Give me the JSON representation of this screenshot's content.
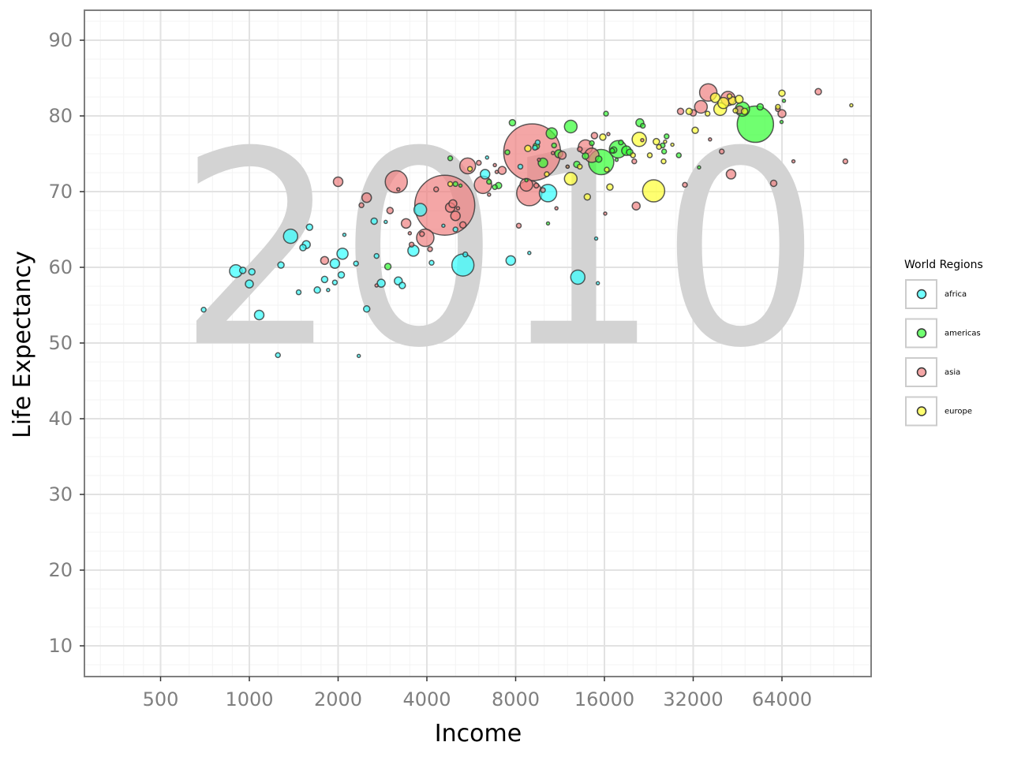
{
  "chart_data": {
    "type": "scatter",
    "year": "2010",
    "xlabel": "Income",
    "ylabel": "Life Expectancy",
    "x_scale": "log2",
    "xlim": [
      300,
      120000
    ],
    "ylim": [
      6,
      94
    ],
    "x_ticks": [
      500,
      1000,
      2000,
      4000,
      8000,
      16000,
      32000,
      64000
    ],
    "x_tick_labels": [
      "500",
      "1000",
      "2000",
      "4000",
      "8000",
      "16000",
      "32000",
      "64000"
    ],
    "y_ticks": [
      10,
      20,
      30,
      40,
      50,
      60,
      70,
      80,
      90
    ],
    "y_tick_labels": [
      "10",
      "20",
      "30",
      "40",
      "50",
      "60",
      "70",
      "80",
      "90"
    ],
    "grid": true,
    "legend_title": "World Regions",
    "legend_position": "right",
    "point_size_meaning": "population",
    "series": [
      {
        "name": "africa",
        "color": "#33ffff",
        "points": [
          [
            700,
            54.4,
            3
          ],
          [
            900,
            59.5,
            8
          ],
          [
            950,
            59.6,
            4
          ],
          [
            1000,
            57.8,
            5
          ],
          [
            1020,
            59.4,
            4
          ],
          [
            1080,
            53.7,
            6
          ],
          [
            1250,
            48.4,
            3
          ],
          [
            1280,
            60.3,
            4
          ],
          [
            1380,
            64.1,
            9
          ],
          [
            1470,
            56.7,
            3
          ],
          [
            1520,
            62.6,
            4
          ],
          [
            1560,
            63,
            5
          ],
          [
            1600,
            65.3,
            4
          ],
          [
            1700,
            57,
            4
          ],
          [
            1800,
            58.4,
            4
          ],
          [
            1850,
            57,
            2
          ],
          [
            1950,
            58,
            3
          ],
          [
            1950,
            60.5,
            6
          ],
          [
            2070,
            61.8,
            7
          ],
          [
            2050,
            59,
            4
          ],
          [
            2100,
            64.3,
            2
          ],
          [
            2300,
            60.5,
            3
          ],
          [
            2350,
            48.3,
            2
          ],
          [
            2500,
            54.5,
            4
          ],
          [
            2650,
            66.1,
            4
          ],
          [
            2700,
            61.5,
            3
          ],
          [
            2800,
            57.9,
            5
          ],
          [
            2900,
            66,
            2
          ],
          [
            3200,
            58.2,
            5
          ],
          [
            3300,
            57.6,
            4
          ],
          [
            3600,
            62.2,
            7
          ],
          [
            3800,
            67.6,
            8
          ],
          [
            4150,
            60.6,
            3
          ],
          [
            4550,
            65.5,
            2
          ],
          [
            5000,
            65,
            3
          ],
          [
            5300,
            60.3,
            14
          ],
          [
            5400,
            61.7,
            3
          ],
          [
            6300,
            72.3,
            6
          ],
          [
            6400,
            74.5,
            2
          ],
          [
            7700,
            60.9,
            6
          ],
          [
            8300,
            73.3,
            3
          ],
          [
            8900,
            61.9,
            2
          ],
          [
            9300,
            75.8,
            3
          ],
          [
            9500,
            76.5,
            3
          ],
          [
            10300,
            69.8,
            11
          ],
          [
            13000,
            58.7,
            9
          ],
          [
            15000,
            63.8,
            2
          ],
          [
            15200,
            57.9,
            2
          ]
        ]
      },
      {
        "name": "americas",
        "color": "#33ff33",
        "points": [
          [
            2950,
            60.1,
            4
          ],
          [
            4800,
            74.4,
            3
          ],
          [
            5000,
            71,
            3
          ],
          [
            5200,
            70.8,
            2
          ],
          [
            6500,
            71.3,
            3
          ],
          [
            6800,
            70.6,
            3
          ],
          [
            7000,
            70.8,
            4
          ],
          [
            7500,
            75.2,
            3
          ],
          [
            7800,
            79.1,
            4
          ],
          [
            8700,
            71.5,
            2
          ],
          [
            9400,
            76,
            4
          ],
          [
            9900,
            73.8,
            6
          ],
          [
            10300,
            65.8,
            2
          ],
          [
            10600,
            77.7,
            7
          ],
          [
            10800,
            76.1,
            3
          ],
          [
            11200,
            75,
            5
          ],
          [
            12000,
            73.3,
            2
          ],
          [
            12300,
            78.6,
            8
          ],
          [
            12900,
            73.6,
            4
          ],
          [
            13800,
            74.7,
            4
          ],
          [
            14500,
            76.4,
            3
          ],
          [
            15300,
            74.3,
            4
          ],
          [
            15600,
            73.9,
            16
          ],
          [
            16200,
            80.3,
            3
          ],
          [
            17000,
            75.4,
            3
          ],
          [
            17200,
            75.5,
            4
          ],
          [
            17600,
            74.2,
            2
          ],
          [
            17800,
            75.6,
            11
          ],
          [
            18200,
            76.5,
            3
          ],
          [
            19000,
            75.4,
            6
          ],
          [
            19500,
            75.2,
            4
          ],
          [
            21100,
            79.1,
            5
          ],
          [
            21600,
            78.7,
            3
          ],
          [
            25200,
            76.1,
            3
          ],
          [
            25500,
            75.3,
            3
          ],
          [
            26000,
            77.3,
            3
          ],
          [
            28600,
            74.8,
            3
          ],
          [
            33500,
            73.2,
            2
          ],
          [
            47000,
            80.9,
            9
          ],
          [
            52000,
            78.9,
            23
          ],
          [
            54000,
            81.2,
            4
          ],
          [
            65000,
            82,
            2
          ],
          [
            63800,
            79.2,
            2
          ]
        ]
      },
      {
        "name": "asia",
        "color": "#f08080",
        "points": [
          [
            1800,
            60.9,
            5
          ],
          [
            2000,
            71.3,
            6
          ],
          [
            2400,
            68.2,
            3
          ],
          [
            2500,
            69.2,
            6
          ],
          [
            2700,
            57.6,
            2
          ],
          [
            3000,
            67.5,
            4
          ],
          [
            3200,
            70.3,
            2
          ],
          [
            3150,
            71.3,
            14
          ],
          [
            3400,
            65.8,
            6
          ],
          [
            3500,
            64.5,
            2
          ],
          [
            3550,
            63,
            3
          ],
          [
            3850,
            64.4,
            3
          ],
          [
            3950,
            63.9,
            11
          ],
          [
            4100,
            62.4,
            3
          ],
          [
            4300,
            70.3,
            3
          ],
          [
            4800,
            67.9,
            6
          ],
          [
            4600,
            68.2,
            38
          ],
          [
            4900,
            68.4,
            5
          ],
          [
            5100,
            67.8,
            2
          ],
          [
            5000,
            66.8,
            6
          ],
          [
            5300,
            65.6,
            4
          ],
          [
            5500,
            73.4,
            10
          ],
          [
            6000,
            73.8,
            3
          ],
          [
            6200,
            70.9,
            11
          ],
          [
            6500,
            69.6,
            2
          ],
          [
            7200,
            72.8,
            5
          ],
          [
            6800,
            73.5,
            2
          ],
          [
            6900,
            72.6,
            2
          ],
          [
            8200,
            65.5,
            3
          ],
          [
            8700,
            70.9,
            8
          ],
          [
            8900,
            69.8,
            16
          ],
          [
            9400,
            70.8,
            3
          ],
          [
            9600,
            74.2,
            2
          ],
          [
            9100,
            75.2,
            36
          ],
          [
            9900,
            70.2,
            3
          ],
          [
            10700,
            75.1,
            2
          ],
          [
            11000,
            67.8,
            2
          ],
          [
            11500,
            74.8,
            5
          ],
          [
            12000,
            73.3,
            2
          ],
          [
            13200,
            75.6,
            3
          ],
          [
            13800,
            75.9,
            9
          ],
          [
            14500,
            74.8,
            9
          ],
          [
            14800,
            77.4,
            4
          ],
          [
            16100,
            67.1,
            2
          ],
          [
            16500,
            77.6,
            2
          ],
          [
            20500,
            68.1,
            5
          ],
          [
            20200,
            74,
            3
          ],
          [
            21500,
            76.8,
            2
          ],
          [
            29000,
            80.6,
            4
          ],
          [
            30000,
            70.9,
            3
          ],
          [
            32000,
            80.4,
            4
          ],
          [
            34000,
            81.2,
            8
          ],
          [
            36000,
            83.1,
            11
          ],
          [
            36500,
            76.9,
            2
          ],
          [
            40000,
            75.3,
            3
          ],
          [
            43000,
            72.3,
            6
          ],
          [
            42000,
            82.3,
            9
          ],
          [
            46000,
            80.8,
            5
          ],
          [
            60000,
            71.1,
            4
          ],
          [
            62000,
            80.9,
            3
          ],
          [
            64000,
            80.3,
            5
          ],
          [
            70000,
            74,
            2
          ],
          [
            85000,
            83.2,
            4
          ],
          [
            105000,
            74,
            3
          ]
        ]
      },
      {
        "name": "europe",
        "color": "#ffff33",
        "points": [
          [
            4800,
            71,
            3
          ],
          [
            5600,
            73,
            3
          ],
          [
            8800,
            75.7,
            4
          ],
          [
            10200,
            72.3,
            3
          ],
          [
            12300,
            71.7,
            8
          ],
          [
            13200,
            73.3,
            3
          ],
          [
            14000,
            69.3,
            4
          ],
          [
            15800,
            77.2,
            4
          ],
          [
            16300,
            72.9,
            3
          ],
          [
            16700,
            70.6,
            4
          ],
          [
            20000,
            74.8,
            3
          ],
          [
            21000,
            76.9,
            9
          ],
          [
            22800,
            74.8,
            3
          ],
          [
            23500,
            70.1,
            14
          ],
          [
            24000,
            76.6,
            4
          ],
          [
            24500,
            75.9,
            3
          ],
          [
            25400,
            74,
            3
          ],
          [
            25700,
            76.6,
            2
          ],
          [
            27200,
            76.2,
            2
          ],
          [
            31000,
            80.6,
            4
          ],
          [
            32500,
            78.1,
            4
          ],
          [
            35800,
            80.3,
            3
          ],
          [
            38000,
            82.4,
            6
          ],
          [
            39500,
            80.9,
            8
          ],
          [
            40500,
            81.7,
            7
          ],
          [
            42500,
            82.6,
            3
          ],
          [
            43500,
            82,
            5
          ],
          [
            44500,
            80.7,
            3
          ],
          [
            45800,
            82.2,
            5
          ],
          [
            47800,
            80.6,
            4
          ],
          [
            62000,
            81.2,
            3
          ],
          [
            64000,
            83,
            4
          ],
          [
            110000,
            81.4,
            2
          ]
        ]
      }
    ]
  }
}
